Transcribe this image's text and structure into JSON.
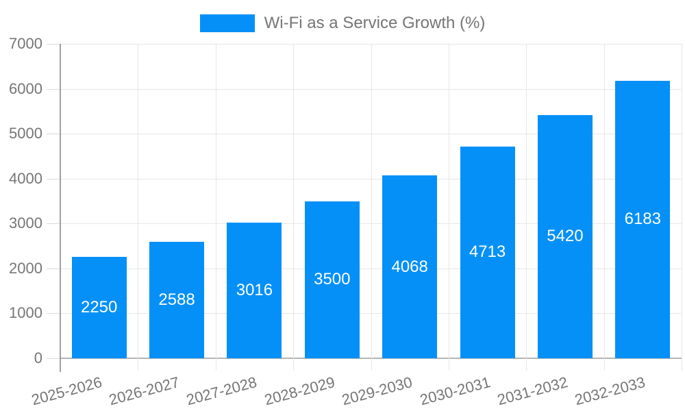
{
  "chart_data": {
    "type": "bar",
    "title": "Wi-Fi as a Service Growth (%)",
    "legend_position": "top",
    "categories": [
      "2025-2026",
      "2026-2027",
      "2027-2028",
      "2028-2029",
      "2029-2030",
      "2030-2031",
      "2031-2032",
      "2032-2033"
    ],
    "values": [
      2250,
      2588,
      3016,
      3500,
      4068,
      4713,
      5420,
      6183
    ],
    "value_labels_shown": true,
    "xlabel": "",
    "ylabel": "",
    "ylim": [
      0,
      7000
    ],
    "ytick_step": 1000,
    "grid": true,
    "colors": {
      "bar": "#0590f8",
      "axis_text": "#757575",
      "value_text": "#ffffff",
      "gridline": "#e6e6e6",
      "baseline": "#b5b5b5",
      "axis_line": "#9e9e9e",
      "background": "#ffffff"
    }
  }
}
